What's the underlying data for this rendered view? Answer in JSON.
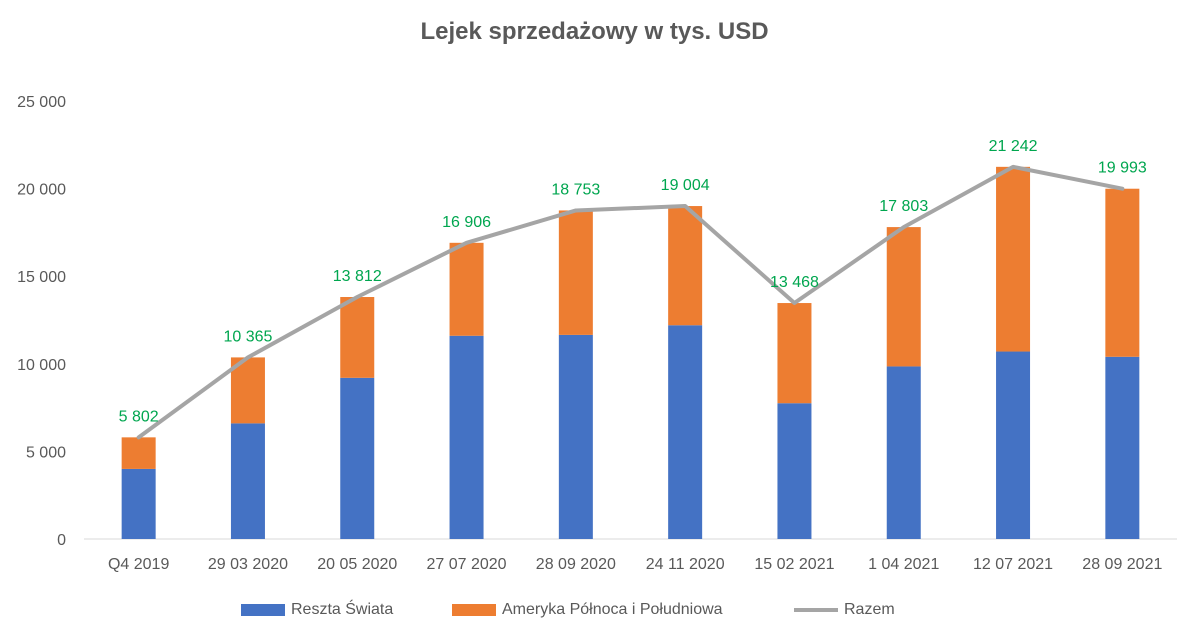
{
  "chart_data": {
    "type": "bar",
    "title": "Lejek sprzedażowy w tys. USD",
    "categories": [
      "Q4 2019",
      "29 03 2020",
      "20 05 2020",
      "27 07 2020",
      "28 09 2020",
      "24 11 2020",
      "15 02 2021",
      "1 04 2021",
      "12 07 2021",
      "28 09 2021"
    ],
    "ylim": [
      0,
      25000
    ],
    "yticks": [
      0,
      5000,
      10000,
      15000,
      20000,
      25000
    ],
    "ytick_labels": [
      "0",
      "5 000",
      "10 000",
      "15 000",
      "20 000",
      "25 000"
    ],
    "stacked": true,
    "grid": false,
    "legend_position": "bottom",
    "series": [
      {
        "name": "Reszta Świata",
        "type": "bar",
        "color": "#4472c4",
        "values": [
          4000,
          6600,
          9200,
          11600,
          11650,
          12200,
          7750,
          9850,
          10700,
          10400
        ]
      },
      {
        "name": "Ameryka Północa i Południowa",
        "type": "bar",
        "color": "#ed7d31",
        "values": [
          1802,
          3765,
          4612,
          5306,
          7103,
          6804,
          5718,
          7953,
          10542,
          9593
        ]
      },
      {
        "name": "Razem",
        "type": "line",
        "color": "#a5a5a5",
        "values": [
          5802,
          10365,
          13812,
          16906,
          18753,
          19004,
          13468,
          17803,
          21242,
          19993
        ],
        "labels": [
          "5 802",
          "10 365",
          "13 812",
          "16 906",
          "18 753",
          "19 004",
          "13 468",
          "17 803",
          "21 242",
          "19 993"
        ],
        "label_color": "#00a64f"
      }
    ]
  }
}
